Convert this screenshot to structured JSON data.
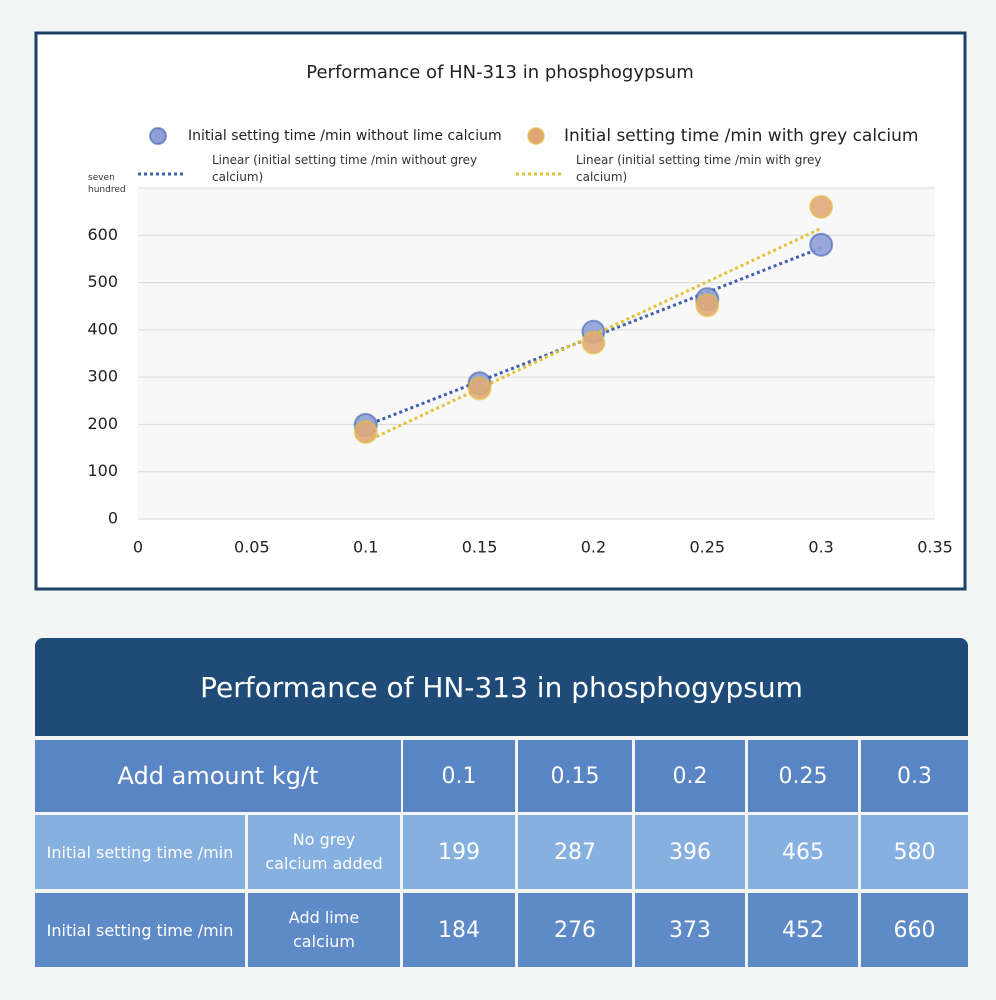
{
  "chart_data": {
    "type": "scatter",
    "title": "Performance of HN-313 in phosphogypsum",
    "series": [
      {
        "name": "Initial setting time /min without lime calcium",
        "trend_name": "Linear (initial setting time /min without grey calcium)",
        "color": "#8e9fd6",
        "trend_color": "#3f5fae",
        "x": [
          0.1,
          0.15,
          0.2,
          0.25,
          0.3
        ],
        "values": [
          199,
          287,
          396,
          465,
          580
        ]
      },
      {
        "name": "Initial setting time /min with grey calcium",
        "trend_name": "Linear (initial setting time /min with grey calcium)",
        "color": "#e0a878",
        "trend_color": "#e3c23a",
        "x": [
          0.1,
          0.15,
          0.2,
          0.25,
          0.3
        ],
        "values": [
          184,
          276,
          373,
          452,
          660
        ]
      }
    ],
    "xlim": [
      0,
      0.35
    ],
    "xticks": [
      0,
      0.05,
      0.1,
      0.15,
      0.2,
      0.25,
      0.3,
      0.35
    ],
    "ylim": [
      0,
      700
    ],
    "yticks": [
      0,
      100,
      200,
      300,
      400,
      500,
      600,
      {
        "value": 700,
        "label": "seven hundred"
      }
    ],
    "grid": true
  },
  "table": {
    "title": "Performance of HN-313 in phosphogypsum",
    "header": [
      "Add amount kg/t",
      0.1,
      0.15,
      0.2,
      0.25,
      0.3
    ],
    "rows": [
      {
        "label": "Initial setting time /min",
        "sub": "No grey calcium added",
        "values": [
          199,
          287,
          396,
          465,
          580
        ]
      },
      {
        "label": "Initial setting time /min",
        "sub": "Add lime calcium",
        "values": [
          184,
          276,
          373,
          452,
          660
        ]
      }
    ]
  }
}
